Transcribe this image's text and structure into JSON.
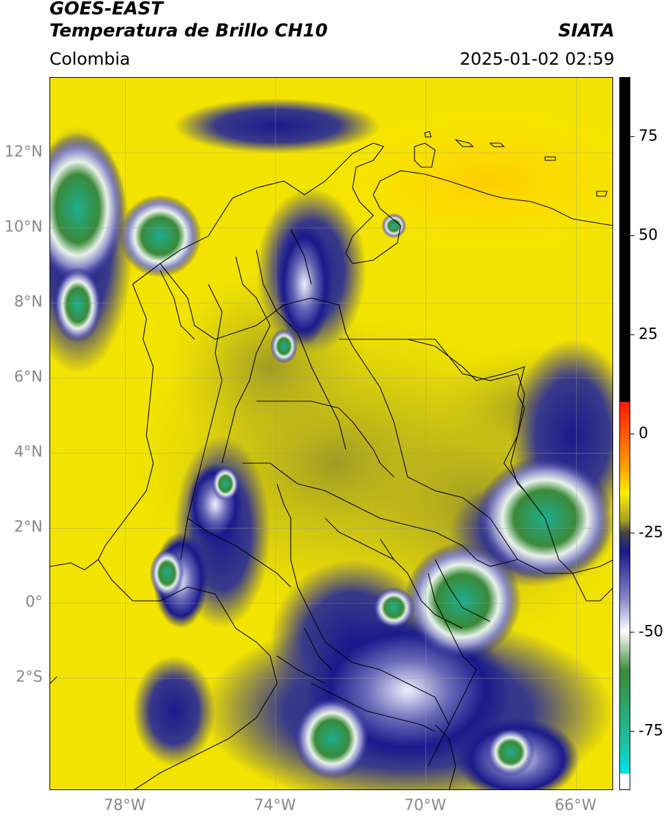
{
  "header": {
    "satellite": "GOES-EAST",
    "product": "Temperatura de Brillo CH10",
    "region": "Colombia",
    "source": "SIATA",
    "datetime": "2025-01-02 02:59"
  },
  "map": {
    "lat_labels": [
      {
        "text": "12°N",
        "lat": 12
      },
      {
        "text": "10°N",
        "lat": 10
      },
      {
        "text": "8°N",
        "lat": 8
      },
      {
        "text": "6°N",
        "lat": 6
      },
      {
        "text": "4°N",
        "lat": 4
      },
      {
        "text": "2°N",
        "lat": 2
      },
      {
        "text": "0°",
        "lat": 0
      },
      {
        "text": "2°S",
        "lat": -2
      }
    ],
    "lon_labels": [
      {
        "text": "78°W",
        "lon": -78
      },
      {
        "text": "74°W",
        "lon": -74
      },
      {
        "text": "70°W",
        "lon": -70
      },
      {
        "text": "66°W",
        "lon": -66
      }
    ],
    "extent": {
      "lon_min": -80,
      "lon_max": -65,
      "lat_min": -5,
      "lat_max": 14
    }
  },
  "colorbar": {
    "labels": [
      {
        "text": "75",
        "value": 75
      },
      {
        "text": "50",
        "value": 50
      },
      {
        "text": "25",
        "value": 25
      },
      {
        "text": "0",
        "value": 0
      },
      {
        "text": "-25",
        "value": -25
      },
      {
        "text": "-50",
        "value": -50
      },
      {
        "text": "-75",
        "value": -75
      }
    ],
    "range": [
      -90,
      90
    ],
    "colors": {
      "black": "#000000",
      "red": "#ff1a00",
      "orange": "#ff9900",
      "yellow": "#ffee00",
      "olive": "#a8a020",
      "navy": "#1a1a8c",
      "white": "#ffffff",
      "green": "#3a8a3a",
      "teal": "#20c0a0",
      "cyan": "#00e0e0"
    }
  }
}
